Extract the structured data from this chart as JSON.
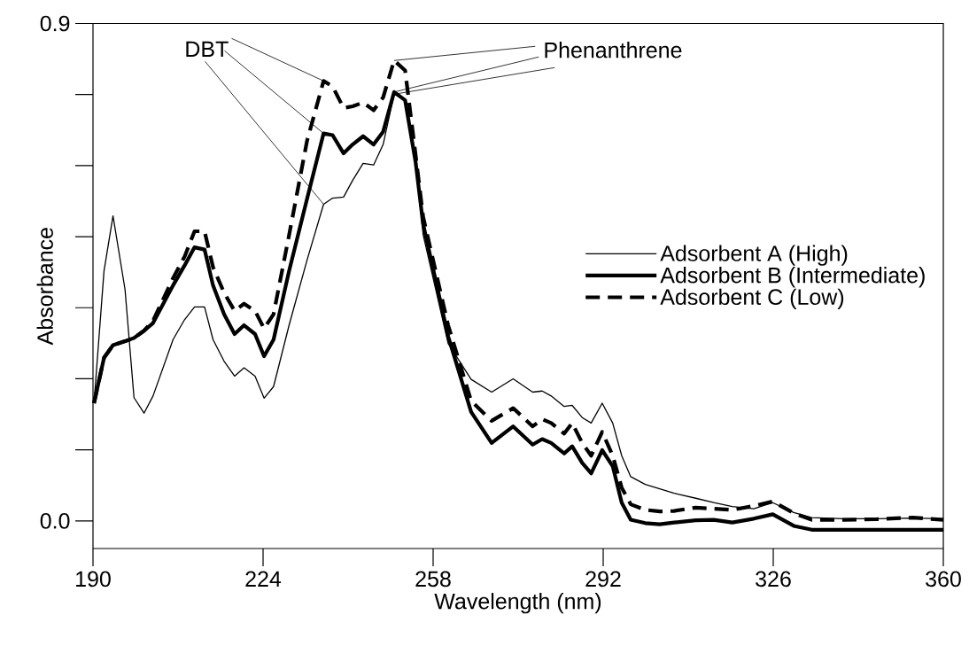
{
  "chart_data": {
    "type": "line",
    "xlabel": "Wavelength (nm)",
    "ylabel": "Absorbance",
    "x": [
      190.2,
      192.2,
      194,
      196.4,
      198.2,
      200.2,
      202,
      206,
      208.3,
      210.3,
      212.3,
      214,
      216.2,
      218.3,
      220.2,
      222.4,
      224.2,
      226.1,
      229.2,
      232.8,
      236.1,
      237.9,
      240.1,
      241.9,
      244,
      246.1,
      248,
      250.2,
      252.4,
      254.5,
      256,
      261,
      265.6,
      269.7,
      274,
      277.9,
      279.8,
      281.6,
      284.2,
      285.8,
      287.8,
      289.6,
      291.8,
      293.9,
      295.7,
      297.5,
      300.4,
      303.3,
      306.2,
      310.5,
      314.1,
      317.8,
      322.1,
      325.9,
      330.1,
      333.7,
      340,
      346.7,
      353.9,
      360
    ],
    "series": [
      {
        "name": "Adsorbent A (High)",
        "color": "#000000",
        "line_style": "solid",
        "values": [
          0.213,
          0.452,
          0.552,
          0.419,
          0.223,
          0.195,
          0.226,
          0.328,
          0.364,
          0.387,
          0.387,
          0.328,
          0.289,
          0.262,
          0.277,
          0.262,
          0.222,
          0.243,
          0.354,
          0.472,
          0.573,
          0.584,
          0.586,
          0.616,
          0.647,
          0.644,
          0.681,
          0.772,
          0.763,
          0.66,
          0.518,
          0.321,
          0.256,
          0.233,
          0.257,
          0.233,
          0.235,
          0.226,
          0.207,
          0.209,
          0.187,
          0.177,
          0.213,
          0.177,
          0.118,
          0.08,
          0.066,
          0.058,
          0.05,
          0.041,
          0.033,
          0.026,
          0.022,
          0.033,
          0.015,
          0.006,
          0.004,
          0.004,
          0.005,
          0.004
        ]
      },
      {
        "name": "Adsorbent B (Intermediate)",
        "color": "#000000",
        "line_style": "solid",
        "values": [
          0.213,
          0.295,
          0.318,
          0.325,
          0.331,
          0.344,
          0.358,
          0.426,
          0.462,
          0.495,
          0.491,
          0.426,
          0.374,
          0.338,
          0.354,
          0.338,
          0.298,
          0.328,
          0.452,
          0.583,
          0.701,
          0.698,
          0.665,
          0.681,
          0.696,
          0.681,
          0.704,
          0.776,
          0.761,
          0.649,
          0.537,
          0.334,
          0.197,
          0.141,
          0.171,
          0.138,
          0.148,
          0.141,
          0.122,
          0.135,
          0.105,
          0.086,
          0.128,
          0.099,
          0.033,
          0.002,
          -0.004,
          -0.006,
          -0.003,
          0.001,
          0.002,
          -0.003,
          0.004,
          0.012,
          -0.009,
          -0.016,
          -0.016,
          -0.016,
          -0.016,
          -0.016
        ]
      },
      {
        "name": "Adsorbent C (Low)",
        "color": "#000000",
        "line_style": "dashed",
        "values": [
          0.213,
          0.295,
          0.318,
          0.325,
          0.331,
          0.344,
          0.362,
          0.439,
          0.478,
          0.524,
          0.524,
          0.459,
          0.413,
          0.38,
          0.393,
          0.38,
          0.348,
          0.374,
          0.517,
          0.688,
          0.796,
          0.786,
          0.747,
          0.75,
          0.757,
          0.743,
          0.766,
          0.833,
          0.815,
          0.662,
          0.55,
          0.354,
          0.217,
          0.181,
          0.204,
          0.171,
          0.184,
          0.177,
          0.158,
          0.177,
          0.141,
          0.118,
          0.161,
          0.118,
          0.06,
          0.03,
          0.02,
          0.017,
          0.018,
          0.024,
          0.022,
          0.02,
          0.027,
          0.035,
          0.014,
          0.002,
          0.002,
          0.003,
          0.006,
          0.002
        ]
      }
    ],
    "xlim": [
      190,
      360
    ],
    "ylim": [
      -0.05,
      0.9
    ],
    "xticks": [
      190,
      224,
      258,
      292,
      326,
      360
    ],
    "yticks": [
      {
        "value": 0,
        "label": "0.0"
      },
      {
        "value": 0.9,
        "label": "0.9"
      }
    ],
    "annotations": [
      {
        "text": "DBT",
        "x": 236.1,
        "y": 0.796
      },
      {
        "text": "Phenanthrene",
        "x": 250.2,
        "y": 0.833
      }
    ],
    "grid": false,
    "legend": "right",
    "marker": "none"
  }
}
